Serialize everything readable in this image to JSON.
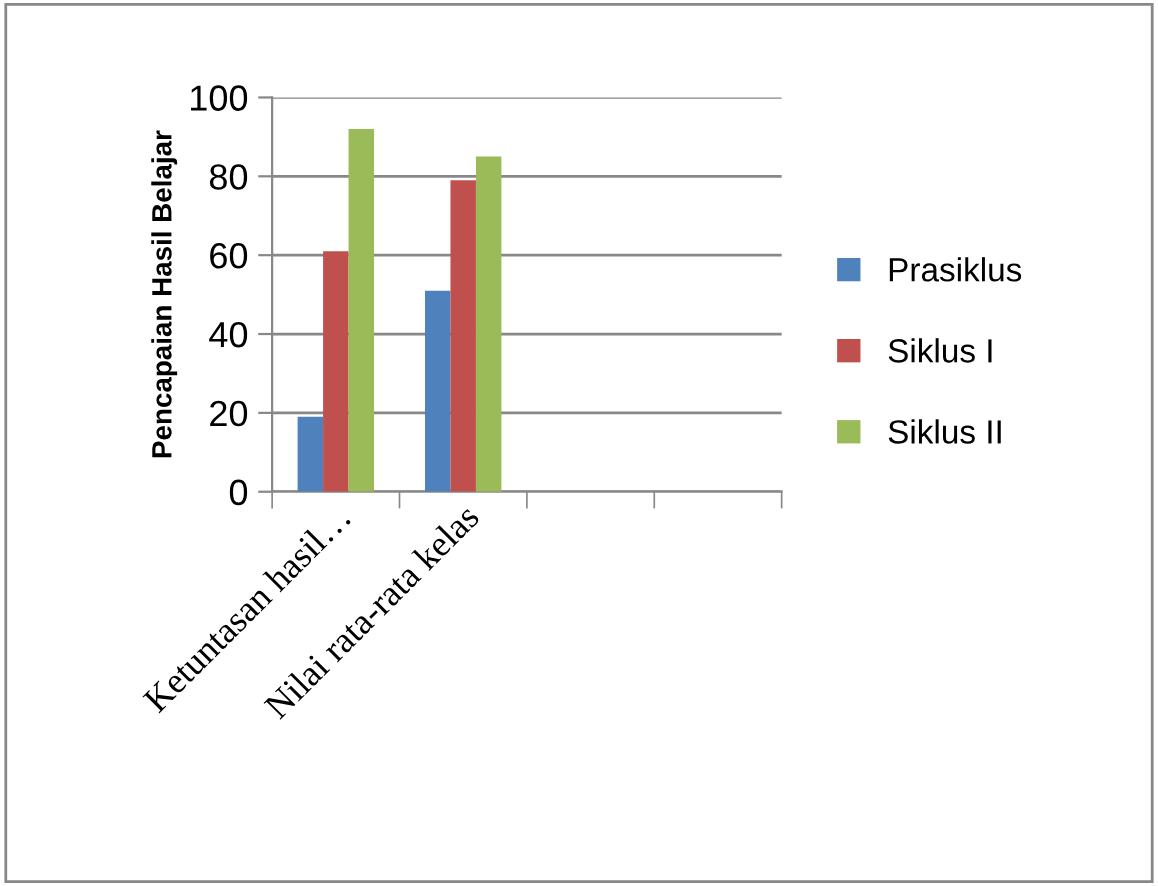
{
  "chart_data": {
    "type": "bar",
    "ylabel": "Pencapaian Hasil Belajar",
    "categories": [
      "Ketuntasan hasil…",
      "Nilai rata-rata kelas",
      null,
      null
    ],
    "series": [
      {
        "name": "Prasiklus",
        "color": "#4f81bd",
        "values": [
          19,
          51,
          null,
          null
        ]
      },
      {
        "name": "Siklus I",
        "color": "#c0504d",
        "values": [
          61,
          79,
          null,
          null
        ]
      },
      {
        "name": "Siklus II",
        "color": "#9bbb59",
        "values": [
          92,
          85,
          null,
          null
        ]
      }
    ],
    "ylim": [
      0,
      100
    ],
    "yticks": [
      0,
      20,
      40,
      60,
      80,
      100
    ],
    "grid": "y",
    "legend": "right"
  }
}
